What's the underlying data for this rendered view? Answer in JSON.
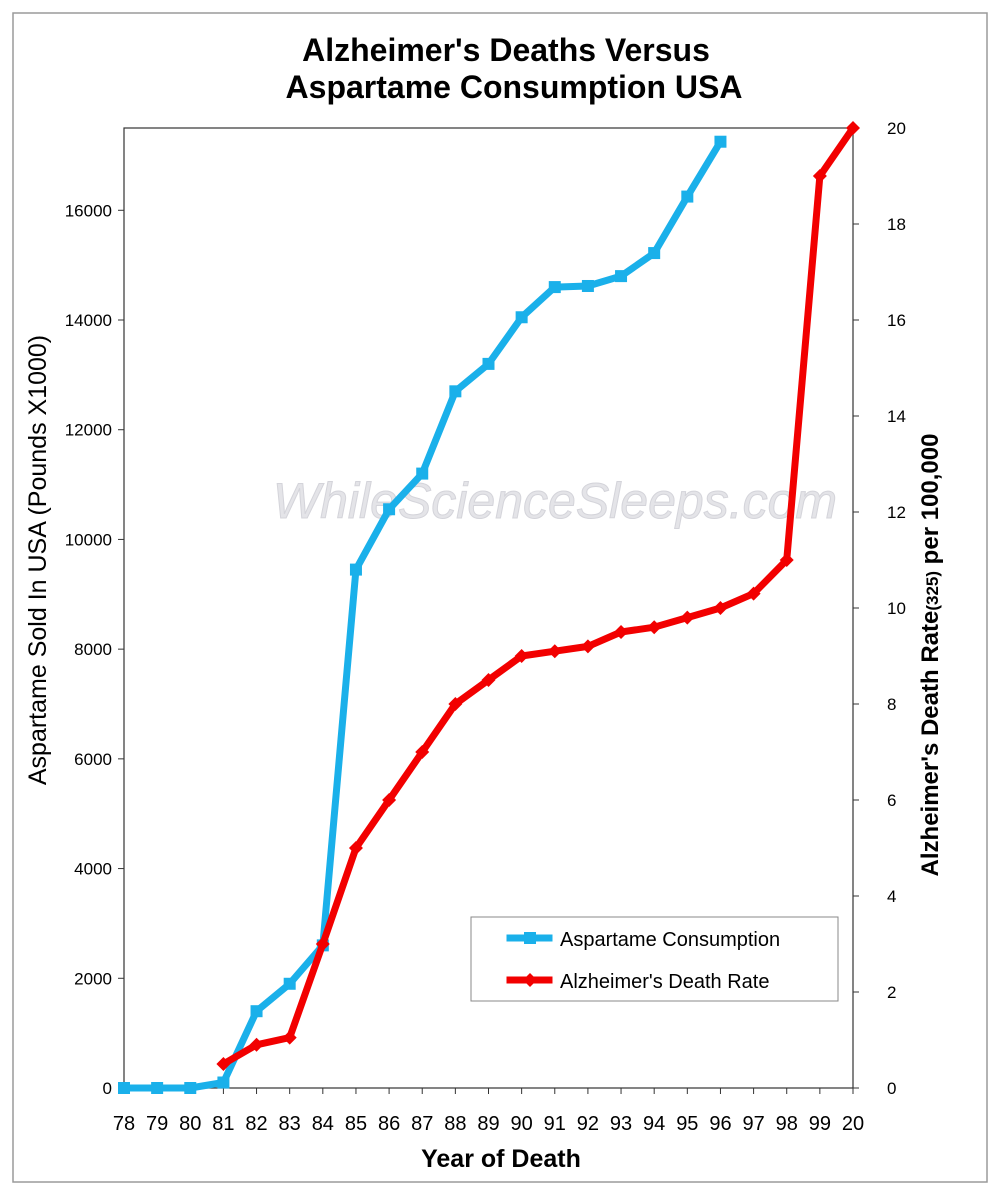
{
  "chart_data": {
    "type": "line",
    "title_line1": "Alzheimer's Deaths  Versus",
    "title_line2": "Aspartame Consumption USA",
    "xlabel": "Year of Death",
    "ylabel": "Aspartame Sold In USA  (Pounds X1000)",
    "y2label": "Alzheimer's Death Rate",
    "y2label_sub": "(325)",
    "y2label_tail": " per 100,000",
    "watermark": "WhileScienceSleeps.com",
    "categories": [
      "78",
      "79",
      "80",
      "81",
      "82",
      "83",
      "84",
      "85",
      "86",
      "87",
      "88",
      "89",
      "90",
      "91",
      "92",
      "93",
      "94",
      "95",
      "96",
      "97",
      "98",
      "99",
      "20"
    ],
    "ylim": [
      0,
      17500
    ],
    "y_ticks": [
      0,
      2000,
      4000,
      6000,
      8000,
      10000,
      12000,
      14000,
      16000
    ],
    "y2lim": [
      0,
      20
    ],
    "y2_ticks": [
      0,
      2,
      4,
      6,
      8,
      10,
      12,
      14,
      16,
      18,
      20
    ],
    "grid": false,
    "legend_position": "bottom-right",
    "series": [
      {
        "name": "Aspartame Consumption",
        "axis": "left",
        "color": "#1ab0ea",
        "values": [
          0,
          0,
          0,
          100,
          1400,
          1900,
          2600,
          9450,
          10550,
          11200,
          12700,
          13200,
          14050,
          14600,
          14620,
          14800,
          15220,
          16250,
          17250,
          null,
          null,
          null,
          null
        ]
      },
      {
        "name": "Alzheimer's Death Rate",
        "axis": "right",
        "color": "#f20000",
        "values": [
          null,
          null,
          null,
          0.5,
          0.9,
          1.05,
          3.0,
          5.0,
          6.0,
          7.0,
          8.0,
          8.5,
          9.0,
          9.1,
          9.2,
          9.5,
          9.6,
          9.8,
          10.0,
          10.3,
          11.0,
          19.0,
          20.0
        ]
      }
    ]
  }
}
